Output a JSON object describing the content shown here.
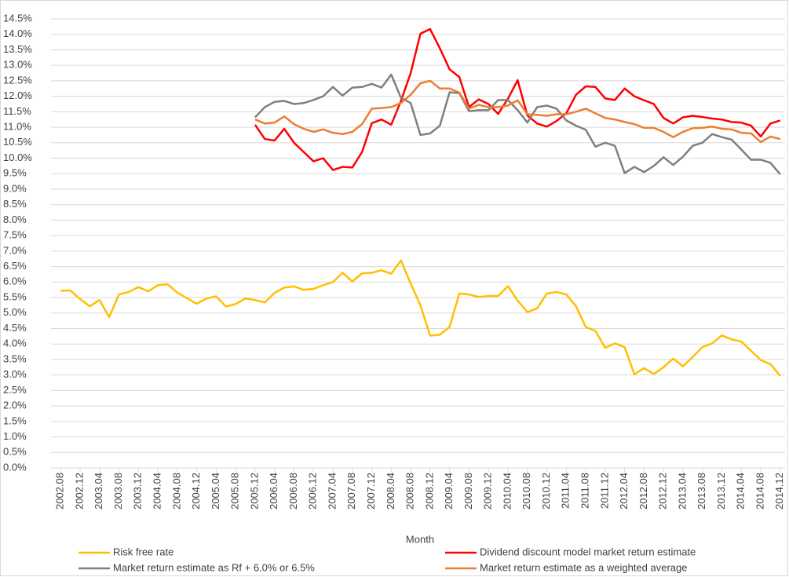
{
  "chart_data": {
    "type": "line",
    "x_label": "Month",
    "categories": [
      "2002.08",
      null,
      "2002.12",
      null,
      "2003.04",
      null,
      "2003.08",
      null,
      "2003.12",
      null,
      "2004.04",
      null,
      "2004.08",
      null,
      "2004.12",
      null,
      "2005.04",
      null,
      "2005.08",
      null,
      "2005.12",
      null,
      "2006.04",
      null,
      "2006.08",
      null,
      "2006.12",
      null,
      "2007.04",
      null,
      "2007.08",
      null,
      "2007.12",
      null,
      "2008.04",
      null,
      "2008.08",
      null,
      "2008.12",
      null,
      "2009.04",
      null,
      "2009.08",
      null,
      "2009.12",
      null,
      "2010.04",
      null,
      "2010.08",
      null,
      "2010.12",
      null,
      "2011.04",
      null,
      "2011.08",
      null,
      "2011.12",
      null,
      "2012.04",
      null,
      "2012.08",
      null,
      "2012.12",
      null,
      "2013.04",
      null,
      "2013.08",
      null,
      "2013.12",
      null,
      "2014.04",
      null,
      "2014.08",
      null,
      "2014.12"
    ],
    "series": [
      {
        "name": "Risk free rate",
        "color": "#FFC000",
        "values": [
          5.72,
          5.73,
          5.45,
          5.22,
          5.42,
          4.87,
          5.6,
          5.68,
          5.84,
          5.7,
          5.9,
          5.93,
          5.66,
          5.48,
          5.3,
          5.47,
          5.54,
          5.21,
          5.29,
          5.47,
          5.42,
          5.34,
          5.65,
          5.82,
          5.86,
          5.75,
          5.78,
          5.9,
          6.0,
          6.3,
          6.02,
          6.28,
          6.3,
          6.38,
          6.27,
          6.7,
          5.95,
          5.25,
          4.27,
          4.3,
          4.55,
          5.63,
          5.6,
          5.52,
          5.55,
          5.55,
          5.87,
          5.4,
          5.03,
          5.15,
          5.63,
          5.68,
          5.6,
          5.22,
          4.55,
          4.42,
          3.88,
          4.02,
          3.9,
          3.02,
          3.22,
          3.03,
          3.25,
          3.53,
          3.28,
          3.58,
          3.9,
          4.02,
          4.28,
          4.15,
          4.08,
          3.78,
          3.48,
          3.35,
          2.97
        ]
      },
      {
        "name": "Dividend discount model market return estimate",
        "color": "#FF0000",
        "values": [
          null,
          null,
          null,
          null,
          null,
          null,
          null,
          null,
          null,
          null,
          null,
          null,
          null,
          null,
          null,
          null,
          null,
          null,
          null,
          null,
          11.08,
          10.62,
          10.57,
          10.95,
          10.5,
          10.2,
          9.9,
          10.0,
          9.62,
          9.72,
          9.7,
          10.2,
          11.13,
          11.25,
          11.08,
          11.85,
          12.75,
          14.02,
          14.17,
          13.55,
          12.87,
          12.62,
          11.65,
          11.9,
          11.75,
          11.43,
          11.92,
          12.52,
          11.38,
          11.12,
          11.02,
          11.2,
          11.45,
          12.05,
          12.32,
          12.3,
          11.93,
          11.88,
          12.25,
          12.0,
          11.87,
          11.75,
          11.3,
          11.12,
          11.32,
          11.37,
          11.33,
          11.28,
          11.25,
          11.17,
          11.15,
          11.05,
          10.7,
          11.12,
          11.22
        ]
      },
      {
        "name": "Market return estimate as Rf + 6.0% or 6.5%",
        "color": "#7F7F7F",
        "values": [
          null,
          null,
          null,
          null,
          null,
          null,
          null,
          null,
          null,
          null,
          null,
          null,
          null,
          null,
          null,
          null,
          null,
          null,
          null,
          null,
          11.32,
          11.65,
          11.82,
          11.85,
          11.75,
          11.78,
          11.88,
          12.0,
          12.3,
          12.02,
          12.28,
          12.3,
          12.4,
          12.28,
          12.7,
          11.95,
          11.78,
          10.75,
          10.8,
          11.05,
          12.13,
          12.1,
          11.52,
          11.55,
          11.55,
          11.88,
          11.88,
          11.55,
          11.15,
          11.65,
          11.7,
          11.6,
          11.22,
          11.05,
          10.92,
          10.37,
          10.5,
          10.4,
          9.52,
          9.72,
          9.55,
          9.75,
          10.03,
          9.78,
          10.05,
          10.4,
          10.5,
          10.78,
          10.68,
          10.6,
          10.28,
          9.95,
          9.95,
          9.85,
          9.48
        ]
      },
      {
        "name": "Market return estimate as a weighted average",
        "color": "#ED7D31",
        "values": [
          null,
          null,
          null,
          null,
          null,
          null,
          null,
          null,
          null,
          null,
          null,
          null,
          null,
          null,
          null,
          null,
          null,
          null,
          null,
          null,
          11.25,
          11.12,
          11.15,
          11.35,
          11.1,
          10.95,
          10.85,
          10.93,
          10.82,
          10.78,
          10.85,
          11.1,
          11.6,
          11.62,
          11.65,
          11.78,
          12.05,
          12.42,
          12.5,
          12.25,
          12.25,
          12.12,
          11.6,
          11.72,
          11.65,
          11.65,
          11.7,
          11.87,
          11.42,
          11.4,
          11.37,
          11.42,
          11.42,
          11.5,
          11.6,
          11.45,
          11.3,
          11.25,
          11.17,
          11.1,
          10.98,
          10.98,
          10.85,
          10.68,
          10.85,
          10.97,
          10.98,
          11.02,
          10.95,
          10.93,
          10.82,
          10.8,
          10.52,
          10.7,
          10.62
        ]
      }
    ],
    "ylim": [
      0,
      14.5
    ],
    "yticks": [
      {
        "value": 0,
        "label": "0.0%"
      },
      {
        "value": 0.5,
        "label": "0.5%"
      },
      {
        "value": 1,
        "label": "1.0%"
      },
      {
        "value": 1.5,
        "label": "1.5%"
      },
      {
        "value": 2,
        "label": "2.0%"
      },
      {
        "value": 2.5,
        "label": "2.5%"
      },
      {
        "value": 3,
        "label": "3.0%"
      },
      {
        "value": 3.5,
        "label": "3.5%"
      },
      {
        "value": 4,
        "label": "4.0%"
      },
      {
        "value": 4.5,
        "label": "4.5%"
      },
      {
        "value": 5,
        "label": "5.0%"
      },
      {
        "value": 5.5,
        "label": "5.5%"
      },
      {
        "value": 6,
        "label": "6.0%"
      },
      {
        "value": 6.5,
        "label": "6.5%"
      },
      {
        "value": 7,
        "label": "7.0%"
      },
      {
        "value": 7.5,
        "label": "7.5%"
      },
      {
        "value": 8,
        "label": "8.0%"
      },
      {
        "value": 8.5,
        "label": "8.5%"
      },
      {
        "value": 9,
        "label": "9.0%"
      },
      {
        "value": 9.5,
        "label": "9.5%"
      },
      {
        "value": 10,
        "label": "10.0%"
      },
      {
        "value": 10.5,
        "label": "10.5%"
      },
      {
        "value": 11,
        "label": "11.0%"
      },
      {
        "value": 11.5,
        "label": "11.5%"
      },
      {
        "value": 12,
        "label": "12.0%"
      },
      {
        "value": 12.5,
        "label": "12.5%"
      },
      {
        "value": 13,
        "label": "13.0%"
      },
      {
        "value": 13.5,
        "label": "13.5%"
      },
      {
        "value": 14,
        "label": "14.0%"
      },
      {
        "value": 14.5,
        "label": "14.5%"
      }
    ],
    "grid": true,
    "legend": "bottom"
  }
}
